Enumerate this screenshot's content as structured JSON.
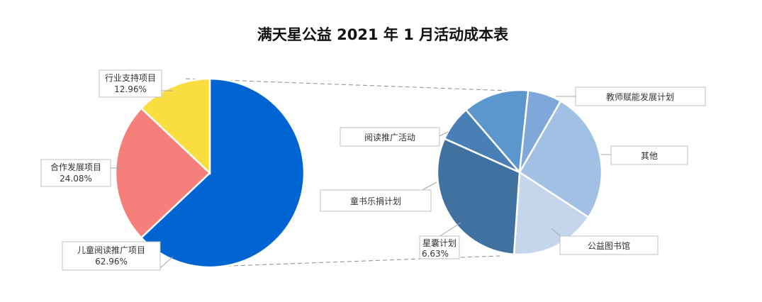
{
  "chart_data": {
    "type": "pie",
    "title": "满天星公益 2021 年 1 月活动成本表",
    "main_pie": {
      "slices": [
        {
          "label": "儿童阅读推广项目",
          "value": 62.96,
          "percent_label": "62.96%",
          "color": "#0064D2"
        },
        {
          "label": "合作发展项目",
          "value": 24.08,
          "percent_label": "24.08%",
          "color": "#F67F7B"
        },
        {
          "label": "行业支持项目",
          "value": 12.96,
          "percent_label": "12.96%",
          "color": "#FADD3E"
        }
      ]
    },
    "detail_pie": {
      "breaks_out": "儿童阅读推广项目",
      "slices": [
        {
          "label": "教师赋能发展计划",
          "value": 24.5,
          "percent_label": "",
          "color": "#A2BFE4"
        },
        {
          "label": "其他",
          "value": 16.0,
          "percent_label": "",
          "color": "#C4D5EC"
        },
        {
          "label": "公益图书馆",
          "value": 29.0,
          "percent_label": "",
          "color": "#41729F"
        },
        {
          "label": "星囊计划",
          "value": 6.63,
          "percent_label": "6.63%",
          "color": "#4A7FB6"
        },
        {
          "label": "童书乐捐计划",
          "value": 12.3,
          "percent_label": "",
          "color": "#5B96CD"
        },
        {
          "label": "阅读推广活动",
          "value": 6.3,
          "percent_label": "",
          "color": "#7FA8D9"
        }
      ]
    }
  }
}
